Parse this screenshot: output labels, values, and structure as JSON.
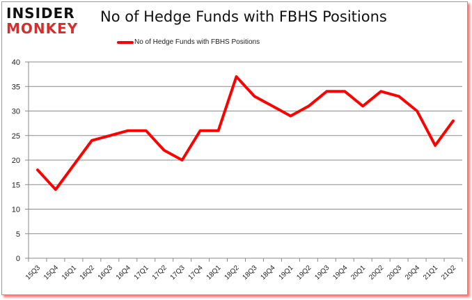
{
  "header": {
    "logo_line1": "INSIDER",
    "logo_line2": "MONKEY",
    "title": "No of Hedge Funds with FBHS Positions"
  },
  "legend": {
    "label": "No of Hedge Funds with FBHS Positions",
    "color": "#ff0000"
  },
  "chart_data": {
    "type": "line",
    "title": "No of Hedge Funds with FBHS Positions",
    "xlabel": "",
    "ylabel": "",
    "ylim": [
      0,
      40
    ],
    "yticks": [
      0,
      5,
      10,
      15,
      20,
      25,
      30,
      35,
      40
    ],
    "grid": true,
    "legend_position": "top",
    "categories": [
      "15Q3",
      "15Q4",
      "16Q1",
      "16Q2",
      "16Q3",
      "16Q4",
      "17Q1",
      "17Q2",
      "17Q3",
      "17Q4",
      "18Q1",
      "18Q2",
      "18Q3",
      "18Q4",
      "19Q1",
      "19Q2",
      "19Q3",
      "19Q4",
      "20Q1",
      "20Q2",
      "20Q3",
      "20Q4",
      "21Q1",
      "21Q2"
    ],
    "series": [
      {
        "name": "No of Hedge Funds with FBHS Positions",
        "color": "#ff0000",
        "values": [
          18,
          14,
          19,
          24,
          25,
          26,
          26,
          22,
          20,
          26,
          26,
          37,
          33,
          31,
          29,
          31,
          34,
          34,
          31,
          34,
          33,
          30,
          23,
          28
        ]
      }
    ]
  }
}
